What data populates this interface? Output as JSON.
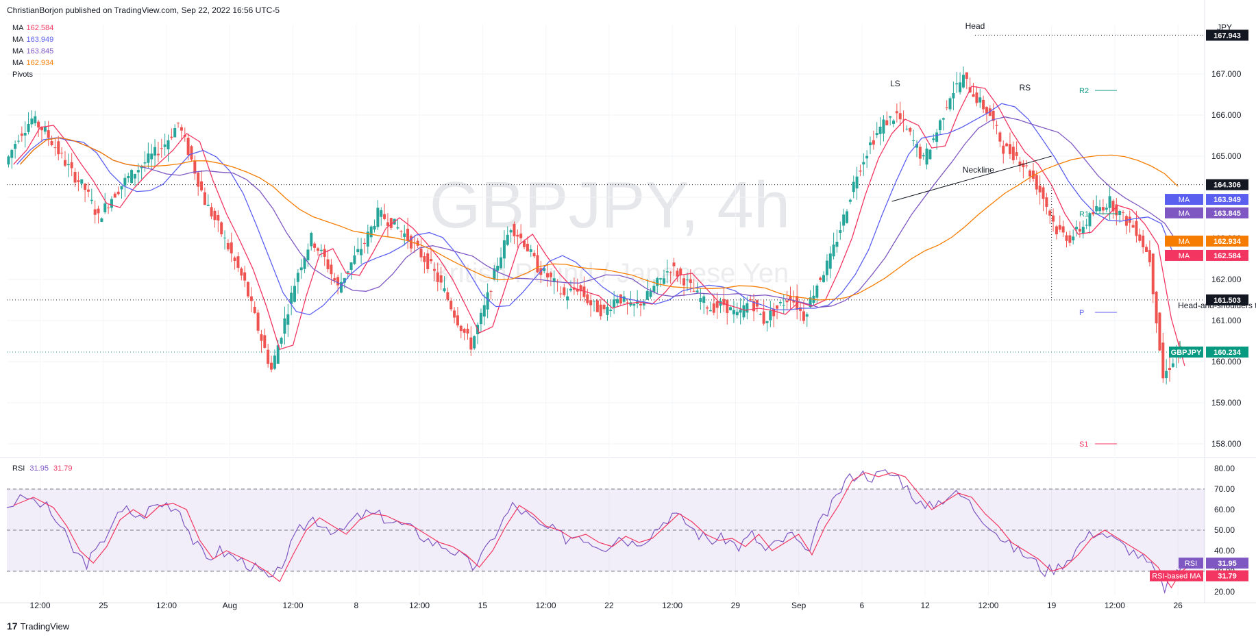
{
  "header": {
    "published_by": "ChristianBorjon published on TradingView.com, Sep 22, 2022 16:56 UTC-5"
  },
  "footer": {
    "brand": "TradingView",
    "logo_glyph": "17"
  },
  "watermark": {
    "symbol": "GBPJPY, 4h",
    "description": "British Pound / Japanese Yen"
  },
  "legend": [
    {
      "label": "MA",
      "value": "162.584",
      "color": "#f23661"
    },
    {
      "label": "MA",
      "value": "163.949",
      "color": "#5b5ff0"
    },
    {
      "label": "MA",
      "value": "163.845",
      "color": "#7e57c2"
    },
    {
      "label": "MA",
      "value": "162.934",
      "color": "#f57c00"
    },
    {
      "label": "Pivots",
      "value": "",
      "color": "#131722"
    }
  ],
  "rsi_legend": {
    "label": "RSI",
    "v1": "31.95",
    "v2": "31.79",
    "c1": "#7e57c2",
    "c2": "#f23661"
  },
  "chart_data": {
    "type": "candlestick",
    "symbol": "GBPJPY",
    "timeframe": "4h",
    "currency": "JPY",
    "ylim": [
      157.8,
      168.2
    ],
    "price_ticks": [
      "158.000",
      "159.000",
      "160.000",
      "161.000",
      "162.000",
      "163.000",
      "164.000",
      "165.000",
      "166.000",
      "167.000"
    ],
    "x_ticks": [
      {
        "label": "12:00",
        "t": 0.05
      },
      {
        "label": "25",
        "t": 0.145
      },
      {
        "label": "12:00",
        "t": 0.24
      },
      {
        "label": "Aug",
        "t": 0.335
      },
      {
        "label": "12:00",
        "t": 0.43
      },
      {
        "label": "8",
        "t": 0.525
      },
      {
        "label": "12:00",
        "t": 0.62
      },
      {
        "label": "15",
        "t": 0.715
      },
      {
        "label": "12:00",
        "t": 0.81
      },
      {
        "label": "22",
        "t": 0.905
      },
      {
        "label": "12:00",
        "t": 1.0
      },
      {
        "label": "29",
        "t": 1.095
      },
      {
        "label": "Sep",
        "t": 1.19
      },
      {
        "label": "6",
        "t": 1.285
      },
      {
        "label": "12",
        "t": 1.38
      },
      {
        "label": "12:00",
        "t": 1.475
      },
      {
        "label": "19",
        "t": 1.57
      },
      {
        "label": "12:00",
        "t": 1.665
      },
      {
        "label": "26",
        "t": 1.76
      }
    ],
    "close_path": [
      [
        0,
        164.8
      ],
      [
        0.02,
        165.5
      ],
      [
        0.04,
        165.9
      ],
      [
        0.06,
        165.6
      ],
      [
        0.08,
        165.1
      ],
      [
        0.1,
        164.6
      ],
      [
        0.12,
        164.2
      ],
      [
        0.14,
        163.5
      ],
      [
        0.16,
        164.0
      ],
      [
        0.18,
        164.4
      ],
      [
        0.2,
        164.7
      ],
      [
        0.22,
        165.0
      ],
      [
        0.24,
        165.3
      ],
      [
        0.26,
        165.8
      ],
      [
        0.28,
        164.9
      ],
      [
        0.3,
        163.9
      ],
      [
        0.32,
        163.3
      ],
      [
        0.34,
        162.6
      ],
      [
        0.36,
        161.9
      ],
      [
        0.38,
        160.8
      ],
      [
        0.4,
        159.8
      ],
      [
        0.42,
        161.0
      ],
      [
        0.44,
        162.2
      ],
      [
        0.46,
        163.0
      ],
      [
        0.48,
        162.5
      ],
      [
        0.5,
        161.8
      ],
      [
        0.52,
        162.4
      ],
      [
        0.54,
        162.9
      ],
      [
        0.56,
        163.6
      ],
      [
        0.58,
        163.4
      ],
      [
        0.6,
        163.1
      ],
      [
        0.62,
        162.7
      ],
      [
        0.64,
        162.3
      ],
      [
        0.66,
        161.7
      ],
      [
        0.68,
        161.0
      ],
      [
        0.7,
        160.4
      ],
      [
        0.72,
        161.3
      ],
      [
        0.74,
        162.4
      ],
      [
        0.76,
        163.3
      ],
      [
        0.78,
        162.9
      ],
      [
        0.8,
        162.3
      ],
      [
        0.82,
        162.0
      ],
      [
        0.84,
        161.6
      ],
      [
        0.86,
        161.8
      ],
      [
        0.88,
        161.4
      ],
      [
        0.9,
        161.2
      ],
      [
        0.92,
        161.6
      ],
      [
        0.94,
        161.3
      ],
      [
        0.96,
        161.5
      ],
      [
        0.98,
        161.9
      ],
      [
        1.0,
        162.3
      ],
      [
        1.02,
        162.0
      ],
      [
        1.04,
        161.6
      ],
      [
        1.06,
        161.3
      ],
      [
        1.08,
        161.4
      ],
      [
        1.1,
        161.1
      ],
      [
        1.12,
        161.5
      ],
      [
        1.14,
        161.0
      ],
      [
        1.16,
        161.3
      ],
      [
        1.18,
        161.6
      ],
      [
        1.2,
        161.1
      ],
      [
        1.22,
        161.9
      ],
      [
        1.24,
        162.5
      ],
      [
        1.26,
        163.5
      ],
      [
        1.28,
        164.6
      ],
      [
        1.3,
        165.3
      ],
      [
        1.32,
        165.8
      ],
      [
        1.34,
        166.0
      ],
      [
        1.36,
        165.5
      ],
      [
        1.38,
        164.9
      ],
      [
        1.4,
        165.6
      ],
      [
        1.42,
        166.5
      ],
      [
        1.44,
        166.9
      ],
      [
        1.46,
        166.4
      ],
      [
        1.48,
        166.0
      ],
      [
        1.5,
        165.2
      ],
      [
        1.52,
        165.0
      ],
      [
        1.54,
        164.6
      ],
      [
        1.56,
        164.0
      ],
      [
        1.58,
        163.2
      ],
      [
        1.6,
        163.0
      ],
      [
        1.62,
        163.3
      ],
      [
        1.64,
        163.7
      ],
      [
        1.66,
        163.9
      ],
      [
        1.68,
        163.5
      ],
      [
        1.7,
        163.2
      ],
      [
        1.72,
        162.5
      ],
      [
        1.74,
        159.6
      ],
      [
        1.76,
        160.2
      ],
      [
        1.765,
        160.234
      ]
    ],
    "current_price": "160.234",
    "price_labels": [
      {
        "value": "167.943",
        "price": 167.943,
        "bg": "#131722"
      },
      {
        "value": "164.306",
        "price": 164.306,
        "bg": "#131722"
      },
      {
        "value": "161.503",
        "price": 161.503,
        "bg": "#131722"
      },
      {
        "value": "160.234",
        "price": 160.234,
        "bg": "#089981",
        "tag": "GBPJPY"
      }
    ],
    "ma_tags": [
      {
        "label": "MA",
        "value": "163.949",
        "price": 163.949,
        "bg": "#5b5ff0"
      },
      {
        "label": "MA",
        "value": "163.845",
        "price": 163.62,
        "bg": "#7e57c2"
      },
      {
        "label": "MA",
        "value": "162.934",
        "price": 162.934,
        "bg": "#f57c00"
      },
      {
        "label": "MA",
        "value": "162.584",
        "price": 162.584,
        "bg": "#f23661"
      }
    ],
    "annotations": [
      {
        "text": "Head",
        "price": 168.1,
        "t": 1.455
      },
      {
        "text": "LS",
        "price": 166.7,
        "t": 1.335
      },
      {
        "text": "RS",
        "price": 166.6,
        "t": 1.53
      },
      {
        "text": "Neckline",
        "price": 164.6,
        "t": 1.46
      },
      {
        "text": "Head-and-shoulders target",
        "price": 161.3,
        "t": 1.76
      }
    ],
    "pivots": [
      {
        "label": "R2",
        "price": 166.6
      },
      {
        "label": "R1",
        "price": 163.6
      },
      {
        "label": "P",
        "price": 161.2
      },
      {
        "label": "S1",
        "price": 158.0
      }
    ],
    "rsi": {
      "ylim": [
        18,
        82
      ],
      "ticks": [
        "20.00",
        "30.00",
        "40.00",
        "50.00",
        "60.00",
        "70.00",
        "80.00"
      ],
      "band": [
        30,
        70
      ],
      "midline": 50,
      "rsi_value": "31.95",
      "ma_value": "31.79",
      "rsi_tag": "RSI",
      "ma_tag": "RSI-based MA",
      "values": [
        [
          0,
          62
        ],
        [
          0.03,
          66
        ],
        [
          0.06,
          61
        ],
        [
          0.08,
          52
        ],
        [
          0.1,
          40
        ],
        [
          0.12,
          34
        ],
        [
          0.14,
          42
        ],
        [
          0.16,
          55
        ],
        [
          0.18,
          60
        ],
        [
          0.2,
          56
        ],
        [
          0.22,
          62
        ],
        [
          0.24,
          63
        ],
        [
          0.26,
          60
        ],
        [
          0.28,
          45
        ],
        [
          0.3,
          36
        ],
        [
          0.32,
          40
        ],
        [
          0.34,
          37
        ],
        [
          0.36,
          34
        ],
        [
          0.38,
          30
        ],
        [
          0.4,
          25
        ],
        [
          0.42,
          38
        ],
        [
          0.44,
          50
        ],
        [
          0.46,
          56
        ],
        [
          0.48,
          52
        ],
        [
          0.5,
          48
        ],
        [
          0.52,
          55
        ],
        [
          0.54,
          58
        ],
        [
          0.56,
          57
        ],
        [
          0.58,
          54
        ],
        [
          0.6,
          52
        ],
        [
          0.62,
          48
        ],
        [
          0.64,
          44
        ],
        [
          0.66,
          42
        ],
        [
          0.68,
          38
        ],
        [
          0.7,
          32
        ],
        [
          0.72,
          40
        ],
        [
          0.74,
          52
        ],
        [
          0.76,
          62
        ],
        [
          0.78,
          58
        ],
        [
          0.8,
          52
        ],
        [
          0.82,
          50
        ],
        [
          0.84,
          46
        ],
        [
          0.86,
          48
        ],
        [
          0.88,
          44
        ],
        [
          0.9,
          42
        ],
        [
          0.92,
          47
        ],
        [
          0.94,
          44
        ],
        [
          0.96,
          46
        ],
        [
          0.98,
          52
        ],
        [
          1.0,
          58
        ],
        [
          1.02,
          54
        ],
        [
          1.04,
          48
        ],
        [
          1.06,
          45
        ],
        [
          1.08,
          46
        ],
        [
          1.1,
          42
        ],
        [
          1.12,
          48
        ],
        [
          1.14,
          40
        ],
        [
          1.16,
          44
        ],
        [
          1.18,
          48
        ],
        [
          1.2,
          38
        ],
        [
          1.22,
          52
        ],
        [
          1.24,
          62
        ],
        [
          1.26,
          74
        ],
        [
          1.28,
          78
        ],
        [
          1.3,
          76
        ],
        [
          1.32,
          78
        ],
        [
          1.34,
          76
        ],
        [
          1.36,
          68
        ],
        [
          1.38,
          60
        ],
        [
          1.4,
          64
        ],
        [
          1.42,
          68
        ],
        [
          1.44,
          66
        ],
        [
          1.46,
          58
        ],
        [
          1.48,
          52
        ],
        [
          1.5,
          44
        ],
        [
          1.52,
          40
        ],
        [
          1.54,
          36
        ],
        [
          1.56,
          30
        ],
        [
          1.58,
          32
        ],
        [
          1.6,
          38
        ],
        [
          1.62,
          46
        ],
        [
          1.64,
          50
        ],
        [
          1.66,
          46
        ],
        [
          1.68,
          42
        ],
        [
          1.7,
          38
        ],
        [
          1.72,
          32
        ],
        [
          1.74,
          22
        ],
        [
          1.755,
          30
        ],
        [
          1.765,
          32
        ]
      ]
    }
  }
}
